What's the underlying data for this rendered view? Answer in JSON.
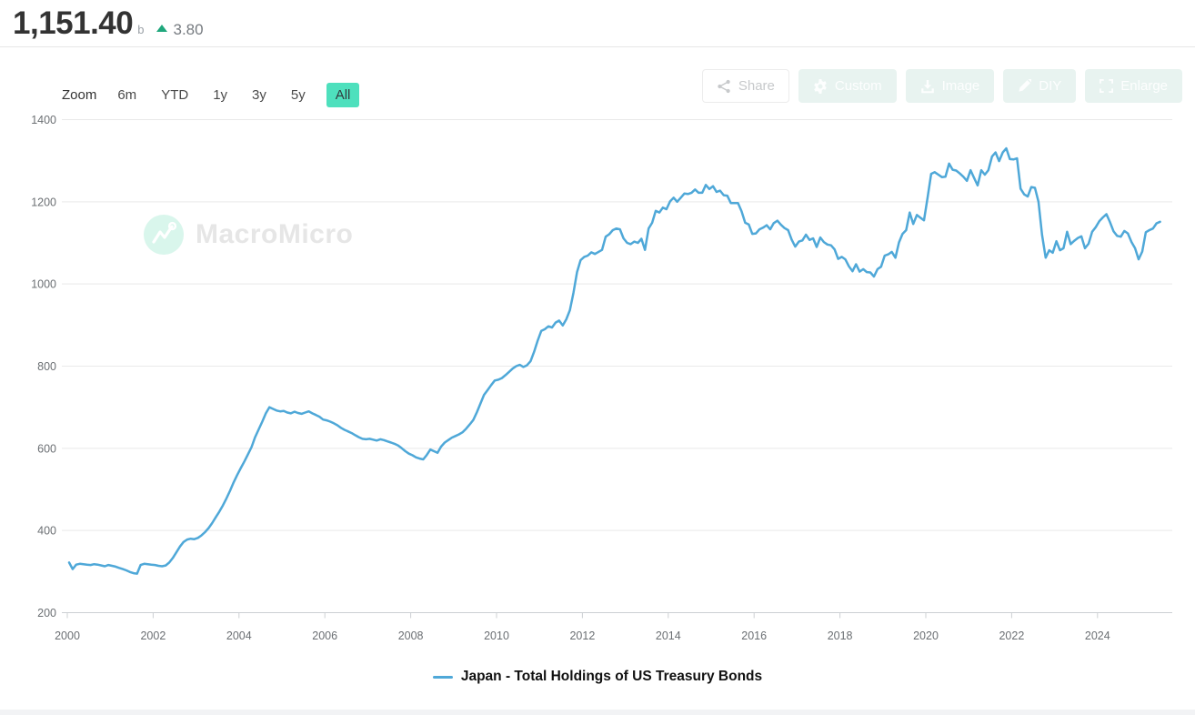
{
  "header": {
    "value": "1,151.40",
    "unit": "b",
    "delta": "3.80",
    "delta_direction": "up",
    "delta_color": "#1fa77c"
  },
  "toolbar": {
    "zoom_label": "Zoom",
    "ranges": [
      {
        "label": "6m",
        "selected": false
      },
      {
        "label": "YTD",
        "selected": false
      },
      {
        "label": "1y",
        "selected": false
      },
      {
        "label": "3y",
        "selected": false
      },
      {
        "label": "5y",
        "selected": false
      },
      {
        "label": "All",
        "selected": true
      }
    ],
    "selected_range_bg": "#4ee0bd",
    "actions": [
      {
        "label": "Share",
        "icon": "share-icon",
        "style": "outline"
      },
      {
        "label": "Custom",
        "icon": "gear-icon",
        "style": "mint"
      },
      {
        "label": "Image",
        "icon": "download-icon",
        "style": "mint"
      },
      {
        "label": "DIY",
        "icon": "pencil-icon",
        "style": "mint"
      },
      {
        "label": "Enlarge",
        "icon": "expand-icon",
        "style": "mint"
      }
    ]
  },
  "watermark": {
    "text": "MacroMicro",
    "icon": "macromicro-logo-icon"
  },
  "legend": {
    "label": "Japan - Total Holdings of US Treasury Bonds"
  },
  "chart_data": {
    "type": "line",
    "title": "Japan - Total Holdings of US Treasury Bonds",
    "unit": "billions USD",
    "grid": "horizontal",
    "legend_position": "bottom",
    "ylim": [
      200,
      1400
    ],
    "y_ticks": [
      200,
      400,
      600,
      800,
      1000,
      1200,
      1400
    ],
    "x_ticks": [
      2000,
      2002,
      2004,
      2006,
      2008,
      2010,
      2012,
      2014,
      2016,
      2018,
      2020,
      2022,
      2024
    ],
    "x_range": [
      2000.0,
      2025.5
    ],
    "series": [
      {
        "name": "Japan - Total Holdings of US Treasury Bonds",
        "color": "#4FA8D8",
        "start_year": 2000,
        "step_months": 1,
        "values": [
          322,
          306,
          317,
          319,
          318,
          317,
          316,
          318,
          317,
          315,
          313,
          316,
          314,
          312,
          309,
          306,
          303,
          299,
          296,
          295,
          316,
          319,
          318,
          317,
          316,
          314,
          313,
          315,
          322,
          333,
          347,
          361,
          372,
          378,
          380,
          379,
          382,
          388,
          396,
          406,
          418,
          432,
          446,
          461,
          478,
          497,
          517,
          535,
          552,
          568,
          585,
          603,
          627,
          646,
          665,
          685,
          700,
          696,
          692,
          690,
          691,
          687,
          685,
          689,
          686,
          684,
          687,
          690,
          685,
          681,
          677,
          670,
          668,
          665,
          661,
          656,
          650,
          645,
          641,
          637,
          632,
          627,
          623,
          622,
          623,
          621,
          619,
          622,
          620,
          617,
          614,
          611,
          607,
          600,
          593,
          587,
          583,
          578,
          575,
          573,
          584,
          597,
          593,
          589,
          604,
          614,
          620,
          626,
          630,
          634,
          639,
          648,
          658,
          669,
          688,
          709,
          730,
          742,
          754,
          765,
          767,
          771,
          778,
          786,
          794,
          800,
          803,
          798,
          802,
          812,
          835,
          862,
          886,
          890,
          897,
          894,
          906,
          911,
          899,
          914,
          936,
          979,
          1029,
          1058,
          1066,
          1069,
          1077,
          1073,
          1078,
          1083,
          1115,
          1121,
          1131,
          1135,
          1133,
          1111,
          1100,
          1097,
          1103,
          1100,
          1110,
          1083,
          1135,
          1149,
          1178,
          1174,
          1186,
          1182,
          1201,
          1210,
          1200,
          1210,
          1220,
          1219,
          1222,
          1230,
          1222,
          1222,
          1241,
          1231,
          1238,
          1224,
          1227,
          1216,
          1215,
          1197,
          1197,
          1197,
          1177,
          1149,
          1145,
          1122,
          1123,
          1133,
          1137,
          1143,
          1133,
          1148,
          1154,
          1144,
          1136,
          1131,
          1108,
          1091,
          1103,
          1106,
          1120,
          1107,
          1111,
          1090,
          1113,
          1102,
          1096,
          1094,
          1084,
          1061,
          1066,
          1060,
          1043,
          1031,
          1048,
          1030,
          1036,
          1029,
          1028,
          1018,
          1036,
          1042,
          1069,
          1072,
          1078,
          1064,
          1101,
          1122,
          1131,
          1174,
          1146,
          1168,
          1161,
          1155,
          1211,
          1268,
          1272,
          1266,
          1260,
          1261,
          1293,
          1278,
          1276,
          1269,
          1261,
          1251,
          1277,
          1258,
          1240,
          1277,
          1266,
          1277,
          1310,
          1320,
          1299,
          1320,
          1330,
          1304,
          1303,
          1306,
          1232,
          1218,
          1213,
          1236,
          1234,
          1200,
          1120,
          1064,
          1082,
          1076,
          1104,
          1082,
          1087,
          1127,
          1097,
          1105,
          1112,
          1116,
          1087,
          1098,
          1127,
          1138,
          1153,
          1162,
          1170,
          1150,
          1128,
          1117,
          1115,
          1129,
          1123,
          1102,
          1087,
          1060,
          1079,
          1126,
          1131,
          1135,
          1147.6,
          1151.4
        ]
      }
    ]
  }
}
